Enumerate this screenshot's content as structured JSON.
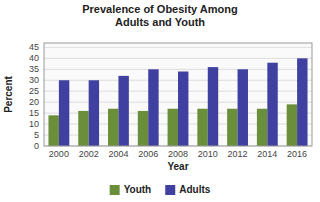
{
  "chart_data": {
    "type": "bar",
    "title": "Prevalence of Obesity Among\nAdults and Youth",
    "x_label": "Year",
    "y_label": "Percent",
    "categories": [
      "2000",
      "2002",
      "2004",
      "2006",
      "2008",
      "2010",
      "2012",
      "2014",
      "2016"
    ],
    "series": [
      {
        "name": "Youth",
        "color": "#6b8e3a",
        "values": [
          14,
          16,
          17,
          16,
          17,
          17,
          17,
          17,
          19
        ]
      },
      {
        "name": "Adults",
        "color": "#4040a0",
        "values": [
          30,
          30,
          32,
          35,
          34,
          36,
          35,
          38,
          40
        ]
      }
    ],
    "ylim": [
      0,
      47
    ],
    "yticks": [
      0,
      5,
      10,
      15,
      20,
      25,
      30,
      35,
      40,
      45
    ],
    "grid": true,
    "legend": "bottom"
  }
}
